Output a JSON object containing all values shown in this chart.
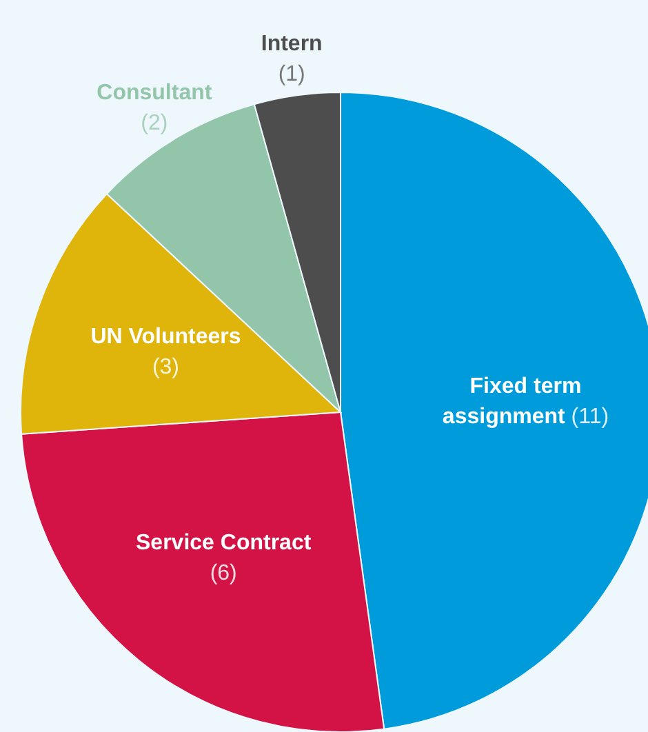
{
  "chart_data": {
    "type": "pie",
    "categories": [
      "Fixed term assignment",
      "Service Contract",
      "UN Volunteers",
      "Consultant",
      "Intern"
    ],
    "values": [
      11,
      6,
      3,
      2,
      1
    ],
    "value_labels": [
      "(11)",
      "(6)",
      "(3)",
      "(2)",
      "(1)"
    ],
    "colors": [
      "#009bdb",
      "#d31245",
      "#dfb40b",
      "#92c5a9",
      "#4d4d4d"
    ]
  }
}
